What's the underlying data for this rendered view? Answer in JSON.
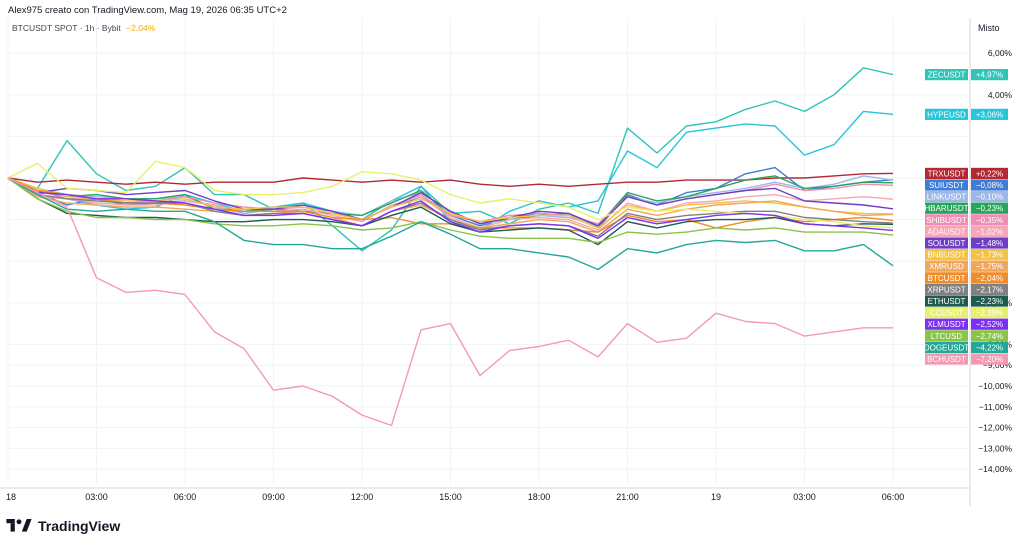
{
  "header": {
    "watermark": "Alex975 creato con TradingView.com, Mag 19, 2026 06:35 UTC+2",
    "symbol": "BTCUSDT SPOT · 1h · Bybit",
    "symbol_change": "−2,04%",
    "axis_mode": "Misto"
  },
  "footer": {
    "brand": "TradingView"
  },
  "colors": {
    "grid": "#f0f3fa",
    "axis_line": "#d1d4dc"
  },
  "chart_data": {
    "type": "line",
    "x": [
      "18",
      "",
      "",
      "03:00",
      "",
      "",
      "06:00",
      "",
      "",
      "09:00",
      "",
      "",
      "12:00",
      "",
      "",
      "15:00",
      "",
      "",
      "18:00",
      "",
      "",
      "21:00",
      "",
      "",
      "19",
      "",
      "",
      "03:00",
      "",
      "",
      "06:00"
    ],
    "xticks": [
      "18",
      "03:00",
      "06:00",
      "09:00",
      "12:00",
      "15:00",
      "18:00",
      "21:00",
      "19",
      "03:00",
      "06:00"
    ],
    "ylim": [
      -15,
      7
    ],
    "yticks": [
      6,
      4,
      2,
      0,
      -2,
      -4,
      -6,
      -8,
      -9,
      -10,
      -11,
      -12,
      -13,
      -14
    ],
    "ytick_labels": [
      "6,00%",
      "4,00%",
      "",
      "",
      "",
      "",
      "−6,00%",
      "−8,00%",
      "−9,00%",
      "−10,00%",
      "−11,00%",
      "−12,00%",
      "−13,00%",
      "−14,00%"
    ],
    "series": [
      {
        "name": "ZECUSDT",
        "label": "+4,97%",
        "color": "#2ec4b6",
        "values": [
          0,
          -0.5,
          1.8,
          0.2,
          -0.6,
          -0.4,
          0.5,
          -0.8,
          -0.8,
          -1.5,
          -1.2,
          -2.3,
          -3.5,
          -2.5,
          -0.4,
          -1.7,
          -1.6,
          -2.2,
          -1.5,
          -1.2,
          -1.7,
          2.4,
          1.2,
          2.5,
          2.7,
          3.3,
          3.7,
          3.2,
          4.0,
          5.3,
          4.97
        ]
      },
      {
        "name": "HYPEUSD",
        "label": "+3,06%",
        "color": "#26c6da",
        "values": [
          0,
          -0.8,
          -1.0,
          -1.3,
          -1.5,
          -1.4,
          -0.8,
          -1.2,
          -1.6,
          -1.4,
          -1.2,
          -1.6,
          -2.0,
          -1.1,
          -0.4,
          -2.1,
          -2.5,
          -1.6,
          -1.1,
          -1.4,
          -1.1,
          1.3,
          0.5,
          2.2,
          2.4,
          2.6,
          2.5,
          1.1,
          1.6,
          3.2,
          3.06
        ]
      },
      {
        "name": "TRXUSDT",
        "label": "+0,22%",
        "color": "#b22833",
        "values": [
          0,
          -0.2,
          -0.1,
          -0.2,
          -0.3,
          -0.2,
          -0.3,
          -0.2,
          -0.2,
          -0.2,
          0,
          -0.1,
          -0.2,
          -0.1,
          -0.2,
          -0.1,
          -0.3,
          -0.4,
          -0.3,
          -0.4,
          -0.3,
          -0.2,
          -0.2,
          -0.1,
          -0.1,
          -0.1,
          0,
          0,
          0.1,
          0.2,
          0.22
        ]
      },
      {
        "name": "SUIUSDT",
        "label": "−0,08%",
        "color": "#3f7cd6",
        "values": [
          0,
          -0.7,
          -1.3,
          -1.0,
          -1.3,
          -1.2,
          -1.1,
          -1.3,
          -1.7,
          -1.5,
          -1.6,
          -1.7,
          -2.0,
          -1.4,
          -0.9,
          -1.8,
          -2.3,
          -1.9,
          -1.7,
          -1.8,
          -2.4,
          -0.8,
          -1.3,
          -0.7,
          -0.5,
          0.2,
          0.5,
          -0.6,
          -0.4,
          -0.2,
          -0.08
        ]
      },
      {
        "name": "LINKUSDT",
        "label": "−0,10%",
        "color": "#9db8e8",
        "values": [
          0,
          -0.5,
          -0.8,
          -0.9,
          -1.0,
          -1.0,
          -0.9,
          -1.4,
          -1.7,
          -1.5,
          -1.4,
          -1.6,
          -1.8,
          -1.1,
          -0.7,
          -1.6,
          -2.2,
          -2.0,
          -1.8,
          -1.9,
          -2.3,
          -0.9,
          -1.2,
          -0.9,
          -0.7,
          -0.5,
          -0.2,
          -0.5,
          -0.3,
          0.1,
          -0.1
        ]
      },
      {
        "name": "HBARUSDT",
        "label": "−0,23%",
        "color": "#26a65b",
        "values": [
          0,
          -0.6,
          -0.9,
          -0.8,
          -1.0,
          -1.0,
          -0.8,
          -1.5,
          -1.6,
          -1.5,
          -1.6,
          -1.7,
          -1.8,
          -1.2,
          -0.6,
          -1.8,
          -2.1,
          -2.0,
          -1.8,
          -1.7,
          -2.3,
          -0.7,
          -1.1,
          -0.9,
          -0.5,
          -0.1,
          0.1,
          -0.5,
          -0.4,
          -0.2,
          -0.23
        ]
      },
      {
        "name": "SHIBUSDT",
        "label": "−0,35%",
        "color": "#f08db5",
        "values": [
          0,
          -0.6,
          -1.0,
          -1.0,
          -1.2,
          -1.1,
          -0.9,
          -1.2,
          -1.4,
          -1.5,
          -1.4,
          -1.7,
          -2.0,
          -1.4,
          -0.8,
          -1.8,
          -2.1,
          -1.8,
          -1.7,
          -1.8,
          -2.2,
          -0.9,
          -1.3,
          -1.0,
          -0.8,
          -0.6,
          -0.3,
          -0.6,
          -0.5,
          -0.3,
          -0.35
        ]
      },
      {
        "name": "ADAUSDT",
        "label": "−1,02%",
        "color": "#f5a6b8",
        "values": [
          0,
          -0.9,
          -1.0,
          -1.2,
          -1.3,
          -1.3,
          -1.1,
          -1.3,
          -1.6,
          -1.6,
          -1.5,
          -1.8,
          -2.1,
          -1.3,
          -0.9,
          -1.9,
          -2.4,
          -2.0,
          -1.9,
          -2.0,
          -2.5,
          -1.2,
          -1.6,
          -1.2,
          -1.1,
          -0.9,
          -0.8,
          -1.1,
          -1.0,
          -0.9,
          -1.02
        ]
      },
      {
        "name": "SOLUSDT",
        "label": "−1,48%",
        "color": "#6c3fc4",
        "values": [
          0,
          -0.7,
          -0.5,
          -0.6,
          -0.8,
          -0.7,
          -0.6,
          -1.1,
          -1.5,
          -1.5,
          -1.3,
          -1.6,
          -2.0,
          -1.4,
          -0.7,
          -1.6,
          -2.2,
          -1.9,
          -1.6,
          -1.7,
          -2.3,
          -0.9,
          -1.3,
          -1.0,
          -0.8,
          -0.6,
          -0.5,
          -1.1,
          -1.2,
          -1.3,
          -1.48
        ]
      },
      {
        "name": "BNBUSDT",
        "label": "−1,73%",
        "color": "#f5c242",
        "values": [
          0,
          -0.5,
          -0.9,
          -1.0,
          -1.1,
          -1.1,
          -1.0,
          -1.4,
          -1.5,
          -1.4,
          -1.4,
          -1.7,
          -2.0,
          -1.4,
          -1.0,
          -1.7,
          -2.1,
          -1.9,
          -1.8,
          -1.8,
          -2.4,
          -1.3,
          -1.6,
          -1.3,
          -1.2,
          -1.1,
          -1.2,
          -1.4,
          -1.6,
          -1.7,
          -1.73
        ]
      },
      {
        "name": "XMRUSD",
        "label": "−1,75%",
        "color": "#f2a65a",
        "values": [
          0,
          -0.9,
          -1.2,
          -1.3,
          -1.4,
          -1.4,
          -1.5,
          -1.6,
          -1.8,
          -1.7,
          -1.6,
          -1.9,
          -2.3,
          -1.6,
          -1.3,
          -2.0,
          -2.4,
          -2.2,
          -2.0,
          -2.1,
          -2.6,
          -1.5,
          -1.8,
          -1.5,
          -1.3,
          -1.2,
          -1.1,
          -1.4,
          -1.6,
          -1.8,
          -1.75
        ]
      },
      {
        "name": "BTCUSDT",
        "label": "−2,04%",
        "color": "#f28c28",
        "values": [
          0,
          -0.6,
          -0.8,
          -1.0,
          -1.2,
          -1.2,
          -1.3,
          -1.5,
          -1.6,
          -1.6,
          -1.6,
          -1.9,
          -2.0,
          -1.9,
          -2.2,
          -2.2,
          -2.4,
          -2.4,
          -2.4,
          -2.5,
          -2.6,
          -1.8,
          -2.1,
          -2.0,
          -2.4,
          -2.1,
          -1.9,
          -2.1,
          -2.0,
          -1.9,
          -2.04
        ]
      },
      {
        "name": "XRPUSDT",
        "label": "−2,17%",
        "color": "#808080",
        "values": [
          0,
          -0.8,
          -1.0,
          -1.1,
          -1.2,
          -1.2,
          -1.2,
          -1.6,
          -1.8,
          -1.7,
          -1.7,
          -2.0,
          -2.3,
          -1.6,
          -1.2,
          -2.0,
          -2.5,
          -2.3,
          -2.2,
          -2.3,
          -2.8,
          -1.7,
          -2.0,
          -1.8,
          -1.7,
          -1.6,
          -1.6,
          -1.9,
          -2.0,
          -2.1,
          -2.17
        ]
      },
      {
        "name": "ETHUSDT",
        "label": "−2,23%",
        "color": "#1e5c4e",
        "values": [
          0,
          -1.0,
          -1.7,
          -1.8,
          -1.9,
          -1.9,
          -2.0,
          -2.1,
          -2.1,
          -2.0,
          -2.0,
          -2.1,
          -2.3,
          -1.8,
          -1.4,
          -2.2,
          -2.6,
          -2.5,
          -2.4,
          -2.5,
          -3.2,
          -2.1,
          -2.4,
          -2.1,
          -2.0,
          -2.0,
          -1.9,
          -2.2,
          -2.3,
          -2.2,
          -2.23
        ]
      },
      {
        "name": "CCUSDT",
        "label": "−2,39%",
        "color": "#e8f06a",
        "values": [
          0,
          0.7,
          -0.5,
          -0.6,
          -0.7,
          0.8,
          0.5,
          -0.6,
          -0.8,
          -0.8,
          -0.7,
          -0.4,
          0.3,
          0.2,
          -0.1,
          -0.8,
          -1.2,
          -1.0,
          -1.2,
          -1.4,
          -2.0,
          -1.4,
          -1.6,
          -1.5,
          -1.6,
          -1.7,
          -1.8,
          -2.0,
          -2.1,
          -2.3,
          -2.39
        ]
      },
      {
        "name": "XLMUSDT",
        "label": "−2,52%",
        "color": "#7b2ff7",
        "values": [
          0,
          -0.7,
          -0.8,
          -1.0,
          -1.0,
          -1.1,
          -1.2,
          -1.5,
          -1.8,
          -1.8,
          -1.7,
          -2.0,
          -2.3,
          -1.6,
          -1.1,
          -2.1,
          -2.6,
          -2.3,
          -2.2,
          -2.3,
          -2.9,
          -1.9,
          -2.2,
          -2.0,
          -1.8,
          -1.7,
          -1.8,
          -2.2,
          -2.3,
          -2.4,
          -2.52
        ]
      },
      {
        "name": "LTCUSD",
        "label": "−2,74%",
        "color": "#8bc34a",
        "values": [
          0,
          -1.0,
          -1.6,
          -1.9,
          -1.9,
          -2.0,
          -2.0,
          -2.2,
          -2.3,
          -2.3,
          -2.2,
          -2.3,
          -2.5,
          -2.4,
          -2.1,
          -2.5,
          -2.8,
          -2.9,
          -2.9,
          -2.9,
          -3.1,
          -2.6,
          -2.7,
          -2.6,
          -2.4,
          -2.5,
          -2.4,
          -2.6,
          -2.6,
          -2.6,
          -2.74
        ]
      },
      {
        "name": "DOGEUSDT",
        "label": "−4,22%",
        "color": "#23a897",
        "values": [
          0,
          -0.8,
          -1.5,
          -1.6,
          -1.5,
          -1.6,
          -1.6,
          -2.1,
          -3.0,
          -3.2,
          -3.2,
          -3.4,
          -3.4,
          -2.8,
          -2.1,
          -2.7,
          -3.4,
          -3.4,
          -3.6,
          -3.8,
          -4.4,
          -3.4,
          -3.6,
          -3.2,
          -3.0,
          -3.1,
          -3.0,
          -3.5,
          -3.5,
          -3.2,
          -4.22
        ]
      },
      {
        "name": "BCHUSDT",
        "label": "−7,20%",
        "color": "#f49ab0",
        "values": [
          0,
          -0.7,
          -1.4,
          -4.8,
          -5.5,
          -5.4,
          -5.6,
          -7.4,
          -8.2,
          -10.2,
          -10.0,
          -10.5,
          -11.4,
          -11.9,
          -7.3,
          -7.0,
          -9.5,
          -8.3,
          -8.1,
          -7.8,
          -8.6,
          -7.0,
          -7.9,
          -7.7,
          -6.5,
          -6.9,
          -7.0,
          -7.6,
          -7.4,
          -7.2,
          -7.2
        ]
      }
    ]
  }
}
